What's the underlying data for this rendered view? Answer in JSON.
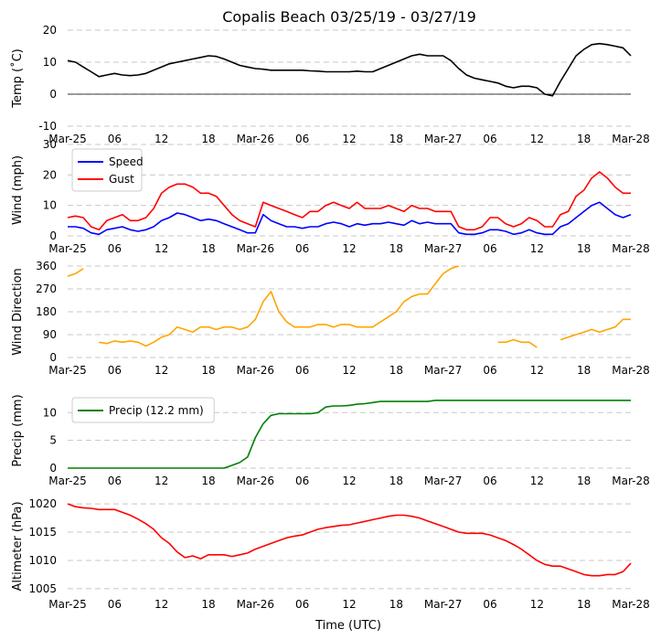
{
  "figure": {
    "title": "Copalis Beach 03/25/19 - 03/27/19",
    "xlabel": "Time (UTC)",
    "x_tick_labels": [
      "Mar-25",
      "06",
      "12",
      "18",
      "Mar-26",
      "06",
      "12",
      "18",
      "Mar-27",
      "06",
      "12",
      "18",
      "Mar-28"
    ]
  },
  "chart_data": [
    {
      "type": "line",
      "panel": "temperature",
      "ylabel": "Temp ($^\\circ$C)",
      "ylabel_display": "Temp (˚C)",
      "x_unit": "hours since 2019-03-25 00:00 UTC",
      "xlim": [
        0,
        72
      ],
      "ylim": [
        -10,
        20
      ],
      "yticks": [
        -10,
        0,
        10,
        20
      ],
      "zero_line": true,
      "series": [
        {
          "name": "Temperature",
          "color": "#000000",
          "x": [
            0,
            1,
            2,
            3,
            4,
            5,
            6,
            7,
            8,
            9,
            10,
            11,
            12,
            13,
            14,
            15,
            16,
            17,
            18,
            19,
            20,
            21,
            22,
            23,
            24,
            25,
            26,
            27,
            28,
            29,
            30,
            31,
            32,
            33,
            34,
            35,
            36,
            37,
            38,
            39,
            40,
            41,
            42,
            43,
            44,
            45,
            46,
            47,
            48,
            49,
            50,
            51,
            52,
            53,
            54,
            55,
            56,
            57,
            58,
            59,
            60,
            61,
            62,
            63,
            64,
            65,
            66,
            67,
            68,
            69,
            70,
            71,
            72
          ],
          "values": [
            10.5,
            10,
            8.5,
            7,
            5.5,
            6,
            6.5,
            6,
            5.8,
            6,
            6.5,
            7.5,
            8.5,
            9.5,
            10,
            10.5,
            11,
            11.5,
            12,
            11.8,
            11,
            10,
            9,
            8.5,
            8,
            7.8,
            7.5,
            7.5,
            7.5,
            7.5,
            7.5,
            7.3,
            7.2,
            7,
            7,
            7,
            7,
            7.2,
            7,
            7,
            8,
            9,
            10,
            11,
            12,
            12.5,
            12,
            12,
            12,
            10.5,
            8,
            6,
            5,
            4.5,
            4,
            3.5,
            2.5,
            2,
            2.5,
            2.5,
            2,
            0,
            -0.5,
            4,
            8,
            12,
            14,
            15.5,
            15.8,
            15.5,
            15,
            14.5,
            12
          ]
        }
      ]
    },
    {
      "type": "line",
      "panel": "wind_speed",
      "ylabel": "Wind (mph)",
      "x_unit": "hours since 2019-03-25 00:00 UTC",
      "xlim": [
        0,
        72
      ],
      "ylim": [
        0,
        30
      ],
      "yticks": [
        0,
        10,
        20,
        30
      ],
      "legend": "top-left",
      "series": [
        {
          "name": "Speed",
          "color": "#0000ff",
          "x": [
            0,
            1,
            2,
            3,
            4,
            5,
            6,
            7,
            8,
            9,
            10,
            11,
            12,
            13,
            14,
            15,
            16,
            17,
            18,
            19,
            20,
            21,
            22,
            23,
            24,
            25,
            26,
            27,
            28,
            29,
            30,
            31,
            32,
            33,
            34,
            35,
            36,
            37,
            38,
            39,
            40,
            41,
            42,
            43,
            44,
            45,
            46,
            47,
            48,
            49,
            50,
            51,
            52,
            53,
            54,
            55,
            56,
            57,
            58,
            59,
            60,
            61,
            62,
            63,
            64,
            65,
            66,
            67,
            68,
            69,
            70,
            71,
            72
          ],
          "values": [
            3,
            3,
            2.5,
            1,
            0.5,
            2,
            2.5,
            3,
            2,
            1.5,
            2,
            3,
            5,
            6,
            7.5,
            7,
            6,
            5,
            5.5,
            5,
            4,
            3,
            2,
            1,
            1,
            7,
            5,
            4,
            3,
            3,
            2.5,
            3,
            3,
            4,
            4.5,
            4,
            3,
            4,
            3.5,
            4,
            4,
            4.5,
            4,
            3.5,
            5,
            4,
            4.5,
            4,
            4,
            4,
            1,
            0.5,
            0.5,
            1,
            2,
            2,
            1.5,
            0.5,
            1,
            2,
            1,
            0.5,
            0.5,
            3,
            4,
            6,
            8,
            10,
            11,
            9,
            7,
            6,
            7
          ]
        },
        {
          "name": "Gust",
          "color": "#ff0000",
          "x": [
            0,
            1,
            2,
            3,
            4,
            5,
            6,
            7,
            8,
            9,
            10,
            11,
            12,
            13,
            14,
            15,
            16,
            17,
            18,
            19,
            20,
            21,
            22,
            23,
            24,
            25,
            26,
            27,
            28,
            29,
            30,
            31,
            32,
            33,
            34,
            35,
            36,
            37,
            38,
            39,
            40,
            41,
            42,
            43,
            44,
            45,
            46,
            47,
            48,
            49,
            50,
            51,
            52,
            53,
            54,
            55,
            56,
            57,
            58,
            59,
            60,
            61,
            62,
            63,
            64,
            65,
            66,
            67,
            68,
            69,
            70,
            71,
            72
          ],
          "values": [
            6,
            6.5,
            6,
            3,
            2,
            5,
            6,
            7,
            5,
            5,
            6,
            9,
            14,
            16,
            17,
            17,
            16,
            14,
            14,
            13,
            10,
            7,
            5,
            4,
            3,
            11,
            10,
            9,
            8,
            7,
            6,
            8,
            8,
            10,
            11,
            10,
            9,
            11,
            9,
            9,
            9,
            10,
            9,
            8,
            10,
            9,
            9,
            8,
            8,
            8,
            3,
            2,
            2,
            3,
            6,
            6,
            4,
            3,
            4,
            6,
            5,
            3,
            3,
            7,
            8,
            13,
            15,
            19,
            21,
            19,
            16,
            14,
            14
          ]
        }
      ]
    },
    {
      "type": "line",
      "panel": "wind_direction",
      "ylabel": "Wind Direction",
      "x_unit": "hours since 2019-03-25 00:00 UTC",
      "xlim": [
        0,
        72
      ],
      "ylim": [
        0,
        360
      ],
      "yticks": [
        0,
        90,
        180,
        270,
        360
      ],
      "series": [
        {
          "name": "Wind Direction",
          "color": "#ffa500",
          "x": [
            0,
            1,
            2,
            3,
            4,
            5,
            6,
            7,
            8,
            9,
            10,
            11,
            12,
            13,
            14,
            15,
            16,
            17,
            18,
            19,
            20,
            21,
            22,
            23,
            24,
            25,
            26,
            27,
            28,
            29,
            30,
            31,
            32,
            33,
            34,
            35,
            36,
            37,
            38,
            39,
            40,
            41,
            42,
            43,
            44,
            45,
            46,
            47,
            48,
            49,
            50,
            51,
            52,
            53,
            54,
            55,
            56,
            57,
            58,
            59,
            60,
            61,
            62,
            63,
            64,
            65,
            66,
            67,
            68,
            69,
            70,
            71,
            72
          ],
          "values": [
            320,
            330,
            350,
            null,
            60,
            55,
            65,
            60,
            65,
            60,
            45,
            60,
            80,
            90,
            120,
            110,
            100,
            120,
            120,
            110,
            120,
            120,
            110,
            120,
            150,
            220,
            260,
            180,
            140,
            120,
            120,
            120,
            130,
            130,
            120,
            130,
            130,
            120,
            120,
            120,
            140,
            160,
            180,
            220,
            240,
            250,
            250,
            290,
            330,
            350,
            360,
            null,
            null,
            null,
            null,
            60,
            60,
            70,
            60,
            60,
            40,
            null,
            null,
            70,
            80,
            90,
            100,
            110,
            100,
            110,
            120,
            150,
            150
          ]
        }
      ]
    },
    {
      "type": "line",
      "panel": "precipitation",
      "ylabel": "Precip (mm)",
      "x_unit": "hours since 2019-03-25 00:00 UTC",
      "xlim": [
        0,
        72
      ],
      "ylim": [
        0,
        13.5
      ],
      "yticks": [
        0,
        5,
        10
      ],
      "legend": "top-left",
      "series": [
        {
          "name": "Precip (12.2 mm)",
          "color": "#008000",
          "x": [
            0,
            1,
            2,
            3,
            4,
            5,
            6,
            7,
            8,
            9,
            10,
            11,
            12,
            13,
            14,
            15,
            16,
            17,
            18,
            19,
            20,
            21,
            22,
            23,
            24,
            25,
            26,
            27,
            28,
            29,
            30,
            31,
            32,
            33,
            34,
            35,
            36,
            37,
            38,
            39,
            40,
            41,
            42,
            43,
            44,
            45,
            46,
            47,
            48,
            49,
            50,
            51,
            52,
            53,
            54,
            55,
            56,
            57,
            58,
            59,
            60,
            61,
            62,
            63,
            64,
            65,
            66,
            67,
            68,
            69,
            70,
            71,
            72
          ],
          "values": [
            0,
            0,
            0,
            0,
            0,
            0,
            0,
            0,
            0,
            0,
            0,
            0,
            0,
            0,
            0,
            0,
            0,
            0,
            0,
            0,
            0,
            0.5,
            1,
            2,
            5.5,
            8,
            9.5,
            9.8,
            9.8,
            9.8,
            9.8,
            9.8,
            10,
            11,
            11.2,
            11.2,
            11.3,
            11.5,
            11.6,
            11.8,
            12,
            12,
            12,
            12,
            12,
            12,
            12,
            12.2,
            12.2,
            12.2,
            12.2,
            12.2,
            12.2,
            12.2,
            12.2,
            12.2,
            12.2,
            12.2,
            12.2,
            12.2,
            12.2,
            12.2,
            12.2,
            12.2,
            12.2,
            12.2,
            12.2,
            12.2,
            12.2,
            12.2,
            12.2,
            12.2,
            12.2
          ]
        }
      ]
    },
    {
      "type": "line",
      "panel": "altimeter",
      "ylabel": "Altimeter (hPa)",
      "x_unit": "hours since 2019-03-25 00:00 UTC",
      "xlim": [
        0,
        72
      ],
      "ylim": [
        1004.5,
        1020.5
      ],
      "yticks": [
        1005,
        1010,
        1015,
        1020
      ],
      "series": [
        {
          "name": "Altimeter",
          "color": "#ff0000",
          "x": [
            0,
            1,
            2,
            3,
            4,
            5,
            6,
            7,
            8,
            9,
            10,
            11,
            12,
            13,
            14,
            15,
            16,
            17,
            18,
            19,
            20,
            21,
            22,
            23,
            24,
            25,
            26,
            27,
            28,
            29,
            30,
            31,
            32,
            33,
            34,
            35,
            36,
            37,
            38,
            39,
            40,
            41,
            42,
            43,
            44,
            45,
            46,
            47,
            48,
            49,
            50,
            51,
            52,
            53,
            54,
            55,
            56,
            57,
            58,
            59,
            60,
            61,
            62,
            63,
            64,
            65,
            66,
            67,
            68,
            69,
            70,
            71,
            72
          ],
          "values": [
            1020,
            1019.5,
            1019.3,
            1019.2,
            1019,
            1019,
            1019,
            1018.5,
            1018,
            1017.3,
            1016.5,
            1015.5,
            1014,
            1013,
            1011.5,
            1010.5,
            1010.8,
            1010.3,
            1011,
            1011,
            1011,
            1010.7,
            1011,
            1011.3,
            1012,
            1012.5,
            1013,
            1013.5,
            1014,
            1014.3,
            1014.5,
            1015,
            1015.5,
            1015.8,
            1016,
            1016.2,
            1016.3,
            1016.6,
            1016.9,
            1017.2,
            1017.5,
            1017.8,
            1018,
            1018,
            1017.8,
            1017.5,
            1017,
            1016.5,
            1016,
            1015.5,
            1015,
            1014.8,
            1014.8,
            1014.8,
            1014.5,
            1014,
            1013.5,
            1012.8,
            1012,
            1011,
            1010,
            1009.3,
            1009,
            1009,
            1008.5,
            1008,
            1007.5,
            1007.3,
            1007.3,
            1007.5,
            1007.5,
            1008,
            1009.5
          ]
        }
      ]
    }
  ]
}
